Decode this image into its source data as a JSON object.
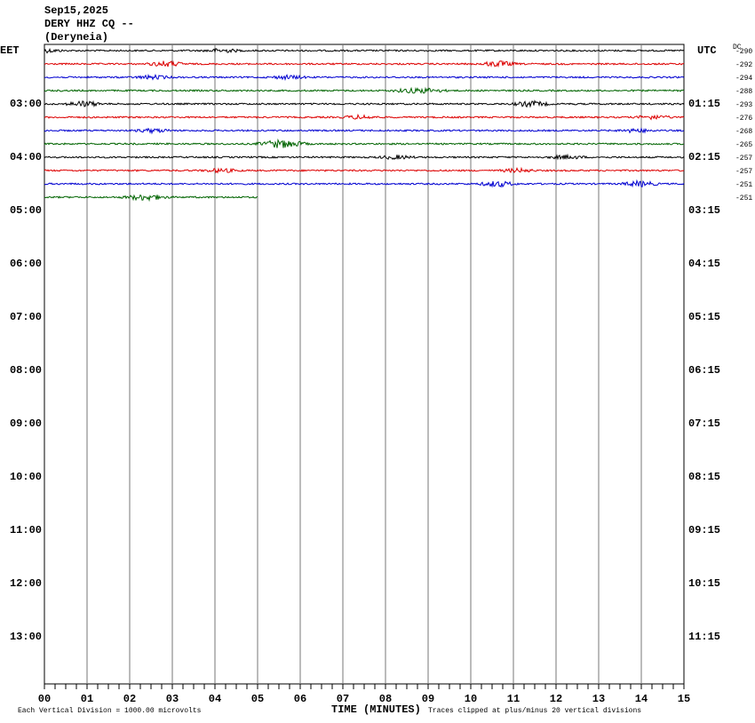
{
  "header": {
    "date": "Sep15,2025",
    "station": "DERY HHZ CQ --",
    "location": "(Deryneia)"
  },
  "left_axis": {
    "zone": "EET",
    "labels": [
      "03:00",
      "04:00",
      "05:00",
      "06:00",
      "07:00",
      "08:00",
      "09:00",
      "10:00",
      "11:00",
      "12:00",
      "13:00"
    ]
  },
  "right_axis": {
    "zone": "UTC",
    "labels": [
      "01:15",
      "02:15",
      "03:15",
      "04:15",
      "05:15",
      "06:15",
      "07:15",
      "08:15",
      "09:15",
      "10:15",
      "11:15"
    ]
  },
  "dc": {
    "title": "DC",
    "values": [
      "-290",
      "-292",
      "-294",
      "-288",
      "-293",
      "-276",
      "-268",
      "-265",
      "-257",
      "-257",
      "-251",
      "-251"
    ]
  },
  "x_axis": {
    "title": "TIME (MINUTES)",
    "ticks": [
      "00",
      "01",
      "02",
      "03",
      "04",
      "05",
      "06",
      "07",
      "08",
      "09",
      "10",
      "11",
      "12",
      "13",
      "14",
      "15"
    ]
  },
  "footer": {
    "scale": "Each Vertical Division = 1000.00 microvolts",
    "clip": "Traces clipped at plus/minus 20 vertical divisions"
  }
}
